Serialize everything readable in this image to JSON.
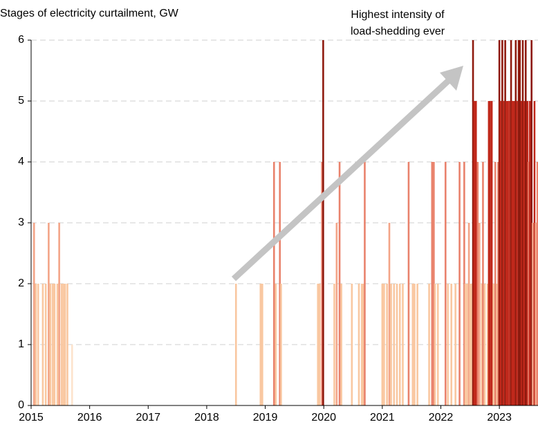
{
  "chart_data": {
    "type": "bar",
    "title": "Stages of electricity curtailment, GW",
    "annotation": [
      "Highest intensity of",
      "load-shedding ever"
    ],
    "xlim": [
      2015,
      2023.66
    ],
    "xticks": [
      2015,
      2016,
      2017,
      2018,
      2019,
      2020,
      2021,
      2022,
      2023
    ],
    "ylim": [
      0,
      6
    ],
    "yticks": [
      0,
      1,
      2,
      3,
      4,
      5,
      6
    ],
    "grid": true,
    "color_by_value": [
      "#fde3cc",
      "#f9c7a0",
      "#f3a487",
      "#e9826c",
      "#c0281b",
      "#8e1a0e"
    ],
    "x": [
      2015.05,
      2015.08,
      2015.12,
      2015.2,
      2015.25,
      2015.3,
      2015.33,
      2015.37,
      2015.4,
      2015.45,
      2015.48,
      2015.52,
      2015.55,
      2015.58,
      2015.62,
      2015.7,
      2018.5,
      2018.92,
      2018.95,
      2019.15,
      2019.18,
      2019.25,
      2019.27,
      2019.9,
      2019.93,
      2019.97,
      2019.99,
      2020.18,
      2020.22,
      2020.27,
      2020.3,
      2020.48,
      2020.6,
      2020.65,
      2020.68,
      2020.7,
      2021.0,
      2021.03,
      2021.08,
      2021.12,
      2021.15,
      2021.2,
      2021.25,
      2021.3,
      2021.35,
      2021.45,
      2021.52,
      2021.55,
      2021.6,
      2021.8,
      2021.85,
      2021.88,
      2021.9,
      2021.95,
      2022.08,
      2022.12,
      2022.18,
      2022.25,
      2022.32,
      2022.4,
      2022.42,
      2022.45,
      2022.48,
      2022.5,
      2022.52,
      2022.55,
      2022.57,
      2022.6,
      2022.63,
      2022.66,
      2022.7,
      2022.72,
      2022.75,
      2022.8,
      2022.82,
      2022.84,
      2022.87,
      2022.9,
      2022.93,
      2022.96,
      2022.98,
      2023.0,
      2023.02,
      2023.05,
      2023.07,
      2023.1,
      2023.12,
      2023.14,
      2023.17,
      2023.2,
      2023.22,
      2023.25,
      2023.28,
      2023.3,
      2023.33,
      2023.35,
      2023.38,
      2023.4,
      2023.42,
      2023.45,
      2023.48,
      2023.5,
      2023.52,
      2023.55,
      2023.57,
      2023.6,
      2023.62,
      2023.65
    ],
    "values": [
      3,
      2,
      2,
      2,
      2,
      3,
      2,
      2,
      2,
      2,
      3,
      2,
      2,
      2,
      2,
      1,
      2,
      2,
      2,
      4,
      2,
      4,
      2,
      2,
      2,
      4,
      6,
      2,
      3,
      4,
      2,
      2,
      2,
      2,
      2,
      4,
      2,
      2,
      2,
      3,
      2,
      2,
      2,
      2,
      2,
      4,
      2,
      2,
      2,
      2,
      4,
      4,
      2,
      2,
      4,
      2,
      2,
      2,
      4,
      4,
      2,
      2,
      3,
      2,
      2,
      6,
      5,
      5,
      4,
      3,
      2,
      4,
      2,
      2,
      5,
      5,
      5,
      2,
      4,
      2,
      4,
      6,
      5,
      6,
      5,
      6,
      5,
      5,
      5,
      6,
      5,
      5,
      6,
      5,
      6,
      6,
      5,
      6,
      5,
      6,
      5,
      4,
      5,
      6,
      3,
      5,
      3,
      4
    ]
  }
}
